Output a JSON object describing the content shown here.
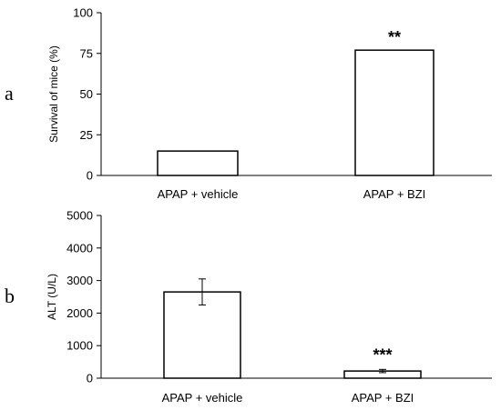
{
  "chart_data": [
    {
      "type": "bar",
      "panel_label": "a",
      "ylabel": "Survival of mice (%)",
      "xlabel": "",
      "ylim": [
        0,
        100
      ],
      "yticks": [
        0,
        25,
        50,
        75,
        100
      ],
      "categories": [
        "APAP + vehicle",
        "APAP + BZI"
      ],
      "values": [
        15,
        77
      ],
      "annotations": [
        "",
        "**"
      ],
      "grid": false
    },
    {
      "type": "bar",
      "panel_label": "b",
      "ylabel": "ALT (U/L)",
      "xlabel": "",
      "ylim": [
        0,
        5000
      ],
      "yticks": [
        0,
        1000,
        2000,
        3000,
        4000,
        5000
      ],
      "categories": [
        "APAP + vehicle",
        "APAP + BZI"
      ],
      "values": [
        2650,
        220
      ],
      "errors": [
        400,
        50
      ],
      "annotations": [
        "",
        "***"
      ],
      "grid": false
    }
  ]
}
